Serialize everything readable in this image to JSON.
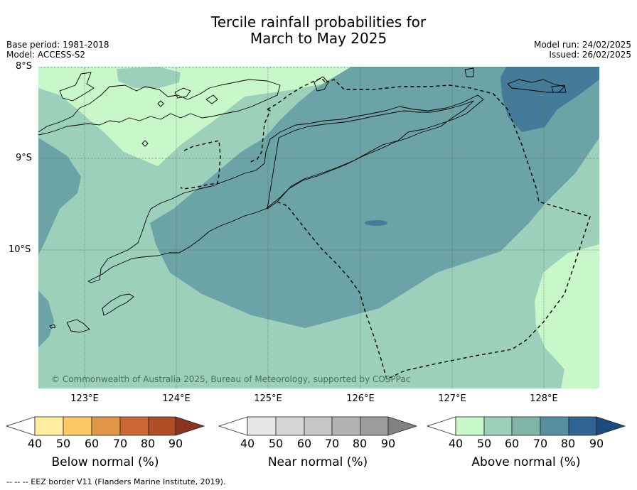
{
  "title": {
    "line1": "Tercile rainfall probabilities for",
    "line2": "March to May 2025"
  },
  "meta": {
    "base_period": "Base period: 1981-2018",
    "model": "Model: ACCESS-S2",
    "model_run": "Model run: 24/02/2025",
    "issued": "Issued: 26/02/2025"
  },
  "map": {
    "lat_labels": [
      "8°S",
      "9°S",
      "10°S"
    ],
    "lon_labels": [
      "123°E",
      "124°E",
      "125°E",
      "126°E",
      "127°E",
      "128°E"
    ],
    "copyright": "© Commonwealth of Australia 2025, Bureau of Meteorology, supported by COSPPac",
    "colors": {
      "above_50": "#c8f7c9",
      "above_60": "#9cd0ba",
      "above_70": "#6ca3a6",
      "above_80": "#447b98",
      "coast": "#000000",
      "grid": "#4a6a5a"
    }
  },
  "colorbars": [
    {
      "label": "Below normal (%)",
      "ticks": [
        "40",
        "50",
        "60",
        "70",
        "80",
        "90"
      ],
      "colors": [
        "#ffeea0",
        "#fdc964",
        "#e19646",
        "#cc6633",
        "#b04e28",
        "#8c3220"
      ]
    },
    {
      "label": "Near normal (%)",
      "ticks": [
        "40",
        "50",
        "60",
        "70",
        "80",
        "90"
      ],
      "colors": [
        "#e6e6e6",
        "#d6d6d6",
        "#c6c6c6",
        "#b2b2b2",
        "#9c9c9c",
        "#828282"
      ]
    },
    {
      "label": "Above normal (%)",
      "ticks": [
        "40",
        "50",
        "60",
        "70",
        "80",
        "90"
      ],
      "colors": [
        "#c8f7c9",
        "#9cd0ba",
        "#80b4a6",
        "#5690a0",
        "#2f6392",
        "#1c4b7e"
      ]
    }
  ],
  "footnote": "--  --  -- EEZ border V11 (Flanders Marine Institute, 2019)."
}
